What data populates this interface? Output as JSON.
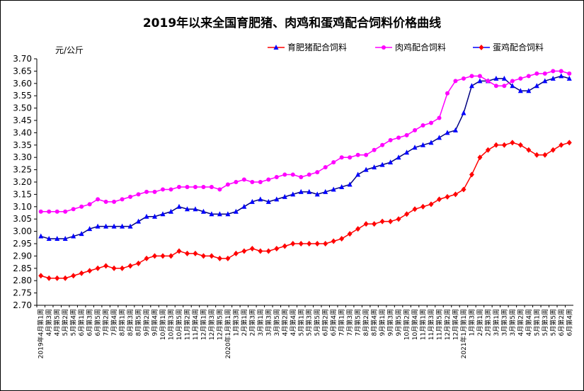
{
  "chart_data": {
    "type": "line",
    "title": "2019年以来全国育肥猪、肉鸡和蛋鸡配合饲料价格曲线",
    "ylabel": "元/公斤",
    "ylim": [
      2.7,
      3.7
    ],
    "yticks": [
      "2.70",
      "2.75",
      "2.80",
      "2.85",
      "2.90",
      "2.95",
      "3.00",
      "3.05",
      "3.10",
      "3.15",
      "3.20",
      "3.25",
      "3.30",
      "3.35",
      "3.40",
      "3.45",
      "3.50",
      "3.55",
      "3.60",
      "3.65",
      "3.70"
    ],
    "grid": false,
    "legend_position": "top-right",
    "x": [
      "2019年4月第1周",
      "4月第3周",
      "4月第5周",
      "5月第2周",
      "5月第4周",
      "6月第1周",
      "6月第3周",
      "6月第5周",
      "7月第2周",
      "7月第4周",
      "8月第1周",
      "8月第3周",
      "8月第5周",
      "9月第2周",
      "9月第4周",
      "10月第1周",
      "10月第3周",
      "10月第5周",
      "11月第2周",
      "11月第4周",
      "12月第1周",
      "12月第3周",
      "12月第5周",
      "2020年1月第1周",
      "1月第3周",
      "2月第1周",
      "2月第3周",
      "3月第1周",
      "3月第3周",
      "3月第5周",
      "4月第2周",
      "4月第4周",
      "5月第1周",
      "5月第3周",
      "5月第5周",
      "6月第2周",
      "6月第4周",
      "7月第1周",
      "7月第3周",
      "7月第5周",
      "8月第2周",
      "8月第4周",
      "9月第1周",
      "9月第3周",
      "9月第5周",
      "10月第2周",
      "10月第4周",
      "11月第1周",
      "11月第3周",
      "11月第5周",
      "12月第2周",
      "12月第4周",
      "2021年1月第1周",
      "1月第3周",
      "2月第1周",
      "2月第3周",
      "3月第1周",
      "3月第3周",
      "3月第5周",
      "4月第2周",
      "4月第4周",
      "5月第1周",
      "5月第3周",
      "5月第5周",
      "6月第2周",
      "6月第4周"
    ],
    "series": [
      {
        "name": "育肥猪配合饲料",
        "color": "#ff0000",
        "marker": "triangle",
        "values": [
          2.98,
          2.97,
          2.97,
          2.97,
          2.98,
          2.99,
          3.01,
          3.02,
          3.02,
          3.02,
          3.02,
          3.02,
          3.04,
          3.06,
          3.06,
          3.07,
          3.08,
          3.1,
          3.09,
          3.09,
          3.08,
          3.07,
          3.07,
          3.07,
          3.08,
          3.1,
          3.12,
          3.13,
          3.12,
          3.13,
          3.14,
          3.15,
          3.16,
          3.16,
          3.15,
          3.16,
          3.17,
          3.18,
          3.19,
          3.23,
          3.25,
          3.26,
          3.27,
          3.28,
          3.3,
          3.32,
          3.34,
          3.35,
          3.36,
          3.38,
          3.4,
          3.41,
          3.48,
          3.59,
          3.61,
          3.61,
          3.62,
          3.62,
          3.59,
          3.57,
          3.57,
          3.59,
          3.61,
          3.62,
          3.63,
          3.62
        ]
      },
      {
        "name": "肉鸡配合饲料",
        "color": "#ff00ff",
        "marker": "circle",
        "values": [
          3.08,
          3.08,
          3.08,
          3.08,
          3.09,
          3.1,
          3.11,
          3.13,
          3.12,
          3.12,
          3.13,
          3.14,
          3.15,
          3.16,
          3.16,
          3.17,
          3.17,
          3.18,
          3.18,
          3.18,
          3.18,
          3.18,
          3.17,
          3.19,
          3.2,
          3.21,
          3.2,
          3.2,
          3.21,
          3.22,
          3.23,
          3.23,
          3.22,
          3.23,
          3.24,
          3.26,
          3.28,
          3.3,
          3.3,
          3.31,
          3.31,
          3.33,
          3.35,
          3.37,
          3.38,
          3.39,
          3.41,
          3.43,
          3.44,
          3.46,
          3.56,
          3.61,
          3.62,
          3.63,
          3.63,
          3.61,
          3.59,
          3.59,
          3.61,
          3.62,
          3.63,
          3.64,
          3.64,
          3.65,
          3.65,
          3.64
        ]
      },
      {
        "name": "蛋鸡配合饲料",
        "color": "#0000ff",
        "marker": "diamond",
        "values": [
          2.82,
          2.81,
          2.81,
          2.81,
          2.82,
          2.83,
          2.84,
          2.85,
          2.86,
          2.85,
          2.85,
          2.86,
          2.87,
          2.89,
          2.9,
          2.9,
          2.9,
          2.92,
          2.91,
          2.91,
          2.9,
          2.9,
          2.89,
          2.89,
          2.91,
          2.92,
          2.93,
          2.92,
          2.92,
          2.93,
          2.94,
          2.95,
          2.95,
          2.95,
          2.95,
          2.95,
          2.96,
          2.97,
          2.99,
          3.01,
          3.03,
          3.03,
          3.04,
          3.04,
          3.05,
          3.07,
          3.09,
          3.1,
          3.11,
          3.13,
          3.14,
          3.15,
          3.17,
          3.23,
          3.3,
          3.33,
          3.35,
          3.35,
          3.36,
          3.35,
          3.33,
          3.31,
          3.31,
          3.33,
          3.35,
          3.36
        ]
      }
    ]
  }
}
